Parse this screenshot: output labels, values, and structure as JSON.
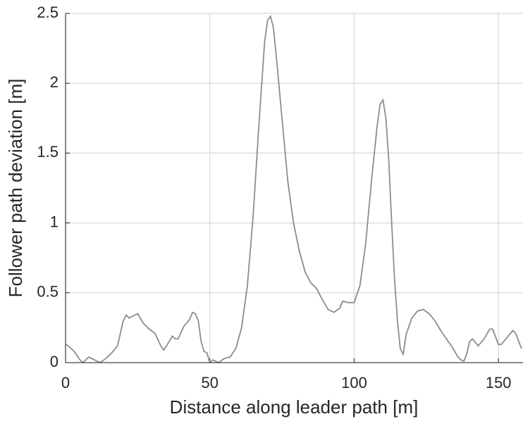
{
  "chart_data": {
    "type": "line",
    "xlabel": "Distance along leader path [m]",
    "ylabel": "Follower path deviation [m]",
    "xlim": [
      0,
      158.5
    ],
    "ylim": [
      0,
      2.5
    ],
    "xticks": [
      0,
      50,
      100,
      150
    ],
    "yticks": [
      0,
      0.5,
      1,
      1.5,
      2,
      2.5
    ],
    "grid": true,
    "series": [
      {
        "color": "#8c8c8c",
        "x": [
          0,
          1,
          3,
          5,
          6,
          8,
          10,
          12,
          14,
          16,
          18,
          20,
          21,
          22,
          24,
          25,
          27,
          29,
          31,
          33,
          34,
          35,
          37,
          38,
          39,
          41,
          43,
          44,
          45,
          46,
          47,
          48,
          49,
          50,
          51,
          52,
          53,
          55,
          57,
          59,
          61,
          63,
          65,
          67,
          69,
          70,
          71,
          72,
          73,
          75,
          77,
          79,
          81,
          83,
          85,
          87,
          89,
          91,
          93,
          95,
          96,
          98,
          100,
          102,
          104,
          106,
          108,
          109,
          110,
          111,
          112,
          113,
          114,
          115,
          116,
          117,
          118,
          120,
          122,
          124,
          126,
          128,
          130,
          132,
          134,
          136,
          137,
          138,
          139,
          140,
          141,
          143,
          145,
          147,
          148,
          150,
          151,
          153,
          155,
          156,
          158
        ],
        "values": [
          0.13,
          0.12,
          0.08,
          0.02,
          0.0,
          0.04,
          0.02,
          0.0,
          0.03,
          0.07,
          0.12,
          0.3,
          0.34,
          0.32,
          0.34,
          0.35,
          0.28,
          0.24,
          0.21,
          0.12,
          0.09,
          0.12,
          0.19,
          0.17,
          0.17,
          0.26,
          0.31,
          0.36,
          0.35,
          0.3,
          0.15,
          0.08,
          0.07,
          0.0,
          0.02,
          0.01,
          0.0,
          0.03,
          0.04,
          0.1,
          0.25,
          0.55,
          1.05,
          1.7,
          2.3,
          2.45,
          2.48,
          2.4,
          2.2,
          1.75,
          1.3,
          1.0,
          0.8,
          0.65,
          0.57,
          0.53,
          0.45,
          0.38,
          0.36,
          0.39,
          0.44,
          0.43,
          0.43,
          0.55,
          0.85,
          1.3,
          1.7,
          1.85,
          1.88,
          1.75,
          1.45,
          1.0,
          0.6,
          0.3,
          0.1,
          0.06,
          0.2,
          0.32,
          0.37,
          0.38,
          0.35,
          0.3,
          0.23,
          0.17,
          0.11,
          0.04,
          0.02,
          0.01,
          0.06,
          0.15,
          0.17,
          0.12,
          0.17,
          0.24,
          0.24,
          0.13,
          0.13,
          0.18,
          0.23,
          0.21,
          0.1
        ]
      }
    ]
  }
}
